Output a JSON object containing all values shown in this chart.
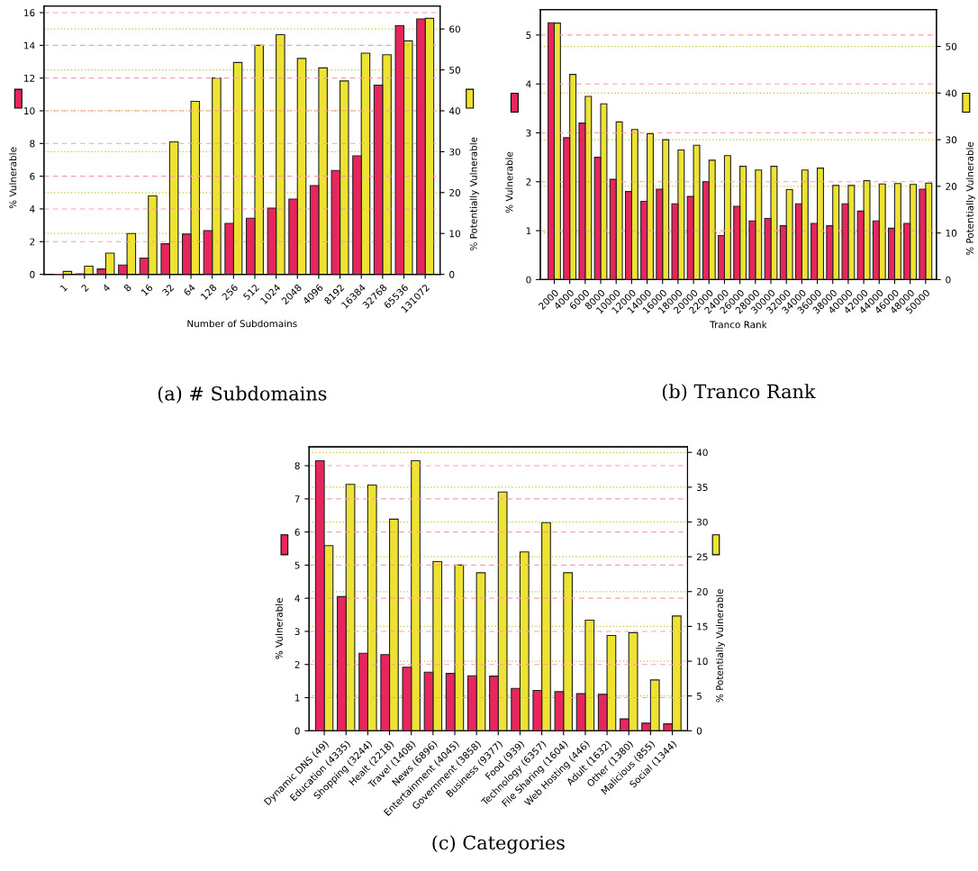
{
  "chart_data": [
    {
      "type": "bar",
      "title": "(a) # Subdomains",
      "xlabel": "Number of Subdomains",
      "ylabel": "% Vulnerable",
      "y2label": "% Potentially Vulnerable",
      "categories": [
        "1",
        "2",
        "4",
        "8",
        "16",
        "32",
        "64",
        "128",
        "256",
        "512",
        "1024",
        "2048",
        "4096",
        "8192",
        "16384",
        "32768",
        "65536",
        "131072"
      ],
      "series": [
        {
          "color": "#e8265e",
          "axis": "y",
          "values": [
            0,
            0.03,
            0.33,
            0.57,
            1.0,
            1.87,
            2.46,
            2.68,
            3.12,
            3.43,
            4.05,
            4.6,
            5.43,
            6.35,
            7.25,
            11.57,
            15.2,
            15.62
          ]
        },
        {
          "color": "#eee232",
          "axis": "y2",
          "values": [
            0.7,
            2.0,
            5.2,
            10.0,
            19.2,
            32.4,
            42.3,
            48.0,
            51.8,
            56.0,
            58.6,
            52.8,
            50.5,
            47.3,
            54.1,
            53.7,
            57.1,
            62.6
          ]
        }
      ],
      "ylim": [
        0,
        16.4
      ],
      "yticks": [
        0,
        2,
        4,
        6,
        8,
        10,
        12,
        14,
        16
      ],
      "y2lim": [
        0,
        65.6
      ],
      "y2ticks": [
        0,
        10,
        20,
        30,
        40,
        50,
        60
      ],
      "grid": true
    },
    {
      "type": "bar",
      "title": "(b) Tranco Rank",
      "xlabel": "Tranco Rank",
      "ylabel": "% Vulnerable",
      "y2label": "% Potentially Vulnerable",
      "categories": [
        "2000",
        "4000",
        "6000",
        "8000",
        "10000",
        "12000",
        "14000",
        "16000",
        "18000",
        "20000",
        "22000",
        "24000",
        "26000",
        "28000",
        "30000",
        "32000",
        "34000",
        "36000",
        "38000",
        "40000",
        "42000",
        "44000",
        "46000",
        "48000",
        "50000"
      ],
      "series": [
        {
          "color": "#e8265e",
          "axis": "y",
          "values": [
            5.25,
            2.9,
            3.2,
            2.5,
            2.05,
            1.8,
            1.6,
            1.85,
            1.55,
            1.7,
            2.0,
            0.9,
            1.5,
            1.2,
            1.25,
            1.1,
            1.55,
            1.15,
            1.1,
            1.55,
            1.4,
            1.2,
            1.05,
            1.15,
            1.85
          ]
        },
        {
          "color": "#eee232",
          "axis": "y2",
          "values": [
            55.0,
            44.0,
            39.3,
            37.7,
            33.8,
            32.2,
            31.3,
            30.0,
            27.8,
            28.8,
            25.6,
            26.6,
            24.3,
            23.5,
            24.3,
            19.3,
            23.5,
            23.9,
            20.2,
            20.2,
            21.2,
            20.5,
            20.6,
            20.4,
            20.7
          ]
        }
      ],
      "ylim": [
        0,
        5.52
      ],
      "yticks": [
        0,
        1,
        2,
        3,
        4,
        5
      ],
      "y2lim": [
        0,
        57.9
      ],
      "y2ticks": [
        0,
        10,
        20,
        30,
        40,
        50
      ],
      "grid": true
    },
    {
      "type": "bar",
      "title": "(c) Categories",
      "ylabel": "% Vulnerable",
      "y2label": "% Potentially Vulnerable",
      "categories": [
        "Dynamic DNS (49)",
        "Education (4335)",
        "Shopping (3244)",
        "Healt (2218)",
        "Travel (1408)",
        "News (6896)",
        "Entertainment (4045)",
        "Government (3858)",
        "Business (9377)",
        "Food (939)",
        "Technology (6357)",
        "File Sharing (1604)",
        "Web Hosting (446)",
        "Adult (1632)",
        "Other (1380)",
        "Malicious (855)",
        "Social (1344)"
      ],
      "series": [
        {
          "color": "#e8265e",
          "axis": "y",
          "values": [
            8.15,
            4.05,
            2.34,
            2.3,
            1.92,
            1.77,
            1.73,
            1.66,
            1.65,
            1.28,
            1.22,
            1.18,
            1.12,
            1.1,
            0.36,
            0.23,
            0.21
          ]
        },
        {
          "color": "#eee232",
          "axis": "y2",
          "values": [
            26.6,
            35.4,
            35.3,
            30.4,
            38.8,
            24.3,
            23.8,
            22.7,
            34.3,
            25.7,
            29.9,
            22.7,
            15.9,
            13.7,
            14.1,
            7.3,
            16.5
          ]
        }
      ],
      "ylim": [
        0,
        8.57
      ],
      "yticks": [
        0,
        1,
        2,
        3,
        4,
        5,
        6,
        7,
        8
      ],
      "y2lim": [
        0,
        40.8
      ],
      "y2ticks": [
        0,
        5,
        10,
        15,
        20,
        25,
        30,
        35,
        40
      ],
      "grid": true
    }
  ]
}
